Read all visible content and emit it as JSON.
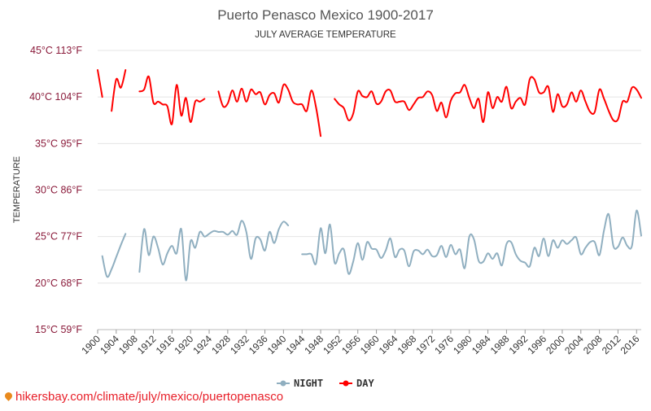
{
  "chart_data": {
    "type": "line",
    "title": "Puerto Penasco Mexico 1900-2017",
    "subtitle": "JULY AVERAGE TEMPERATURE",
    "ylabel": "TEMPERATURE",
    "xlabel": "",
    "ylim": [
      15,
      45
    ],
    "xlim": [
      1900,
      2017
    ],
    "grid": true,
    "legend_position": "bottom-center",
    "y_ticks": [
      {
        "value": 15,
        "label": "15°C 59°F"
      },
      {
        "value": 20,
        "label": "20°C 68°F"
      },
      {
        "value": 25,
        "label": "25°C 77°F"
      },
      {
        "value": 30,
        "label": "30°C 86°F"
      },
      {
        "value": 35,
        "label": "35°C 95°F"
      },
      {
        "value": 40,
        "label": "40°C 104°F"
      },
      {
        "value": 45,
        "label": "45°C 113°F"
      }
    ],
    "x_ticks": [
      1900,
      1904,
      1908,
      1912,
      1916,
      1920,
      1924,
      1928,
      1932,
      1936,
      1940,
      1944,
      1948,
      1952,
      1956,
      1960,
      1964,
      1968,
      1972,
      1976,
      1980,
      1984,
      1988,
      1992,
      1996,
      2000,
      2004,
      2008,
      2012,
      2016
    ],
    "series": [
      {
        "name": "NIGHT",
        "color": "#90afc0",
        "marker_color": "#90afc0",
        "points": [
          [
            1901,
            22.9
          ],
          [
            1902,
            20.7
          ],
          [
            1903,
            21.5
          ],
          [
            1904,
            22.8
          ],
          [
            1905,
            24.1
          ],
          [
            1906,
            25.3
          ],
          [
            1907,
            null
          ],
          [
            1908,
            null
          ],
          [
            1909,
            21.2
          ],
          [
            1910,
            25.8
          ],
          [
            1911,
            23.0
          ],
          [
            1912,
            25.0
          ],
          [
            1913,
            23.8
          ],
          [
            1914,
            22.0
          ],
          [
            1915,
            23.2
          ],
          [
            1916,
            24.0
          ],
          [
            1917,
            23.2
          ],
          [
            1918,
            25.8
          ],
          [
            1919,
            20.3
          ],
          [
            1920,
            24.5
          ],
          [
            1921,
            23.8
          ],
          [
            1922,
            25.5
          ],
          [
            1923,
            25.0
          ],
          [
            1924,
            25.3
          ],
          [
            1925,
            25.6
          ],
          [
            1926,
            25.5
          ],
          [
            1927,
            25.5
          ],
          [
            1928,
            25.2
          ],
          [
            1929,
            25.6
          ],
          [
            1930,
            25.2
          ],
          [
            1931,
            26.7
          ],
          [
            1932,
            25.5
          ],
          [
            1933,
            22.6
          ],
          [
            1934,
            24.8
          ],
          [
            1935,
            24.7
          ],
          [
            1936,
            23.5
          ],
          [
            1937,
            25.5
          ],
          [
            1938,
            24.3
          ],
          [
            1939,
            25.8
          ],
          [
            1940,
            26.6
          ],
          [
            1941,
            26.2
          ],
          [
            1942,
            null
          ],
          [
            1943,
            null
          ],
          [
            1944,
            23.1
          ],
          [
            1945,
            23.1
          ],
          [
            1946,
            23.1
          ],
          [
            1947,
            22.1
          ],
          [
            1948,
            25.9
          ],
          [
            1949,
            23.2
          ],
          [
            1950,
            26.3
          ],
          [
            1951,
            22.2
          ],
          [
            1952,
            23.2
          ],
          [
            1953,
            23.6
          ],
          [
            1954,
            21.0
          ],
          [
            1955,
            22.3
          ],
          [
            1956,
            24.3
          ],
          [
            1957,
            22.5
          ],
          [
            1958,
            24.4
          ],
          [
            1959,
            23.7
          ],
          [
            1960,
            23.6
          ],
          [
            1961,
            22.7
          ],
          [
            1962,
            23.5
          ],
          [
            1963,
            24.8
          ],
          [
            1964,
            22.8
          ],
          [
            1965,
            23.6
          ],
          [
            1966,
            23.5
          ],
          [
            1967,
            21.8
          ],
          [
            1968,
            23.4
          ],
          [
            1969,
            23.5
          ],
          [
            1970,
            23.1
          ],
          [
            1971,
            23.6
          ],
          [
            1972,
            22.9
          ],
          [
            1973,
            23.0
          ],
          [
            1974,
            24.0
          ],
          [
            1975,
            22.8
          ],
          [
            1976,
            24.1
          ],
          [
            1977,
            23.1
          ],
          [
            1978,
            23.6
          ],
          [
            1979,
            21.6
          ],
          [
            1980,
            25.0
          ],
          [
            1981,
            24.7
          ],
          [
            1982,
            22.4
          ],
          [
            1983,
            22.3
          ],
          [
            1984,
            23.2
          ],
          [
            1985,
            22.6
          ],
          [
            1986,
            23.2
          ],
          [
            1987,
            21.9
          ],
          [
            1988,
            24.2
          ],
          [
            1989,
            24.4
          ],
          [
            1990,
            23.1
          ],
          [
            1991,
            22.4
          ],
          [
            1992,
            22.2
          ],
          [
            1993,
            21.8
          ],
          [
            1994,
            23.8
          ],
          [
            1995,
            22.9
          ],
          [
            1996,
            24.8
          ],
          [
            1997,
            22.9
          ],
          [
            1998,
            24.6
          ],
          [
            1999,
            23.8
          ],
          [
            2000,
            24.6
          ],
          [
            2001,
            24.2
          ],
          [
            2002,
            24.6
          ],
          [
            2003,
            24.9
          ],
          [
            2004,
            23.1
          ],
          [
            2005,
            23.8
          ],
          [
            2006,
            24.4
          ],
          [
            2007,
            24.4
          ],
          [
            2008,
            23.0
          ],
          [
            2009,
            25.7
          ],
          [
            2010,
            27.4
          ],
          [
            2011,
            24.0
          ],
          [
            2012,
            23.9
          ],
          [
            2013,
            24.9
          ],
          [
            2014,
            24.0
          ],
          [
            2015,
            24.0
          ],
          [
            2016,
            27.8
          ],
          [
            2017,
            25.1
          ]
        ]
      },
      {
        "name": "DAY",
        "color": "#ff0000",
        "marker_color": "#ff0000",
        "points": [
          [
            1900,
            42.9
          ],
          [
            1901,
            40.0
          ],
          [
            1902,
            null
          ],
          [
            1903,
            38.5
          ],
          [
            1904,
            41.9
          ],
          [
            1905,
            41.0
          ],
          [
            1906,
            42.9
          ],
          [
            1907,
            null
          ],
          [
            1908,
            null
          ],
          [
            1909,
            40.6
          ],
          [
            1910,
            40.8
          ],
          [
            1911,
            42.2
          ],
          [
            1912,
            39.4
          ],
          [
            1913,
            39.5
          ],
          [
            1914,
            39.2
          ],
          [
            1915,
            39.0
          ],
          [
            1916,
            37.1
          ],
          [
            1917,
            41.3
          ],
          [
            1918,
            38.0
          ],
          [
            1919,
            39.9
          ],
          [
            1920,
            37.3
          ],
          [
            1921,
            39.5
          ],
          [
            1922,
            39.5
          ],
          [
            1923,
            39.8
          ],
          [
            1924,
            null
          ],
          [
            1925,
            null
          ],
          [
            1926,
            40.6
          ],
          [
            1927,
            39.0
          ],
          [
            1928,
            39.3
          ],
          [
            1929,
            40.7
          ],
          [
            1930,
            39.5
          ],
          [
            1931,
            40.9
          ],
          [
            1932,
            39.5
          ],
          [
            1933,
            40.8
          ],
          [
            1934,
            40.3
          ],
          [
            1935,
            40.5
          ],
          [
            1936,
            39.2
          ],
          [
            1937,
            40.2
          ],
          [
            1938,
            40.4
          ],
          [
            1939,
            39.4
          ],
          [
            1940,
            41.3
          ],
          [
            1941,
            40.8
          ],
          [
            1942,
            39.5
          ],
          [
            1943,
            39.2
          ],
          [
            1944,
            39.2
          ],
          [
            1945,
            38.5
          ],
          [
            1946,
            40.7
          ],
          [
            1947,
            38.9
          ],
          [
            1948,
            35.8
          ],
          [
            1949,
            null
          ],
          [
            1950,
            null
          ],
          [
            1951,
            39.8
          ],
          [
            1952,
            39.2
          ],
          [
            1953,
            38.8
          ],
          [
            1954,
            37.5
          ],
          [
            1955,
            38.2
          ],
          [
            1956,
            40.6
          ],
          [
            1957,
            40.1
          ],
          [
            1958,
            40.0
          ],
          [
            1959,
            40.6
          ],
          [
            1960,
            39.3
          ],
          [
            1961,
            39.5
          ],
          [
            1962,
            40.6
          ],
          [
            1963,
            40.7
          ],
          [
            1964,
            39.5
          ],
          [
            1965,
            39.5
          ],
          [
            1966,
            39.5
          ],
          [
            1967,
            38.6
          ],
          [
            1968,
            39.2
          ],
          [
            1969,
            39.9
          ],
          [
            1970,
            40.0
          ],
          [
            1971,
            40.6
          ],
          [
            1972,
            40.2
          ],
          [
            1973,
            38.5
          ],
          [
            1974,
            39.4
          ],
          [
            1975,
            37.8
          ],
          [
            1976,
            39.6
          ],
          [
            1977,
            40.4
          ],
          [
            1978,
            40.5
          ],
          [
            1979,
            41.3
          ],
          [
            1980,
            39.9
          ],
          [
            1981,
            38.8
          ],
          [
            1982,
            39.8
          ],
          [
            1983,
            37.3
          ],
          [
            1984,
            40.5
          ],
          [
            1985,
            38.8
          ],
          [
            1986,
            40.0
          ],
          [
            1987,
            39.5
          ],
          [
            1988,
            41.1
          ],
          [
            1989,
            38.8
          ],
          [
            1990,
            39.5
          ],
          [
            1991,
            39.9
          ],
          [
            1992,
            39.2
          ],
          [
            1993,
            41.9
          ],
          [
            1994,
            41.9
          ],
          [
            1995,
            40.5
          ],
          [
            1996,
            40.5
          ],
          [
            1997,
            41.1
          ],
          [
            1998,
            38.4
          ],
          [
            1999,
            40.3
          ],
          [
            2000,
            39.0
          ],
          [
            2001,
            39.2
          ],
          [
            2002,
            40.5
          ],
          [
            2003,
            39.5
          ],
          [
            2004,
            40.7
          ],
          [
            2005,
            39.5
          ],
          [
            2006,
            38.4
          ],
          [
            2007,
            38.4
          ],
          [
            2008,
            40.8
          ],
          [
            2009,
            39.8
          ],
          [
            2010,
            38.5
          ],
          [
            2011,
            37.5
          ],
          [
            2012,
            37.6
          ],
          [
            2013,
            39.5
          ],
          [
            2014,
            39.5
          ],
          [
            2015,
            41.0
          ],
          [
            2016,
            40.8
          ],
          [
            2017,
            39.9
          ]
        ]
      }
    ]
  },
  "legend": {
    "night_label": "NIGHT",
    "day_label": "DAY"
  },
  "watermark": {
    "text": "hikersbay.com/climate/july/mexico/puertopenasco"
  }
}
